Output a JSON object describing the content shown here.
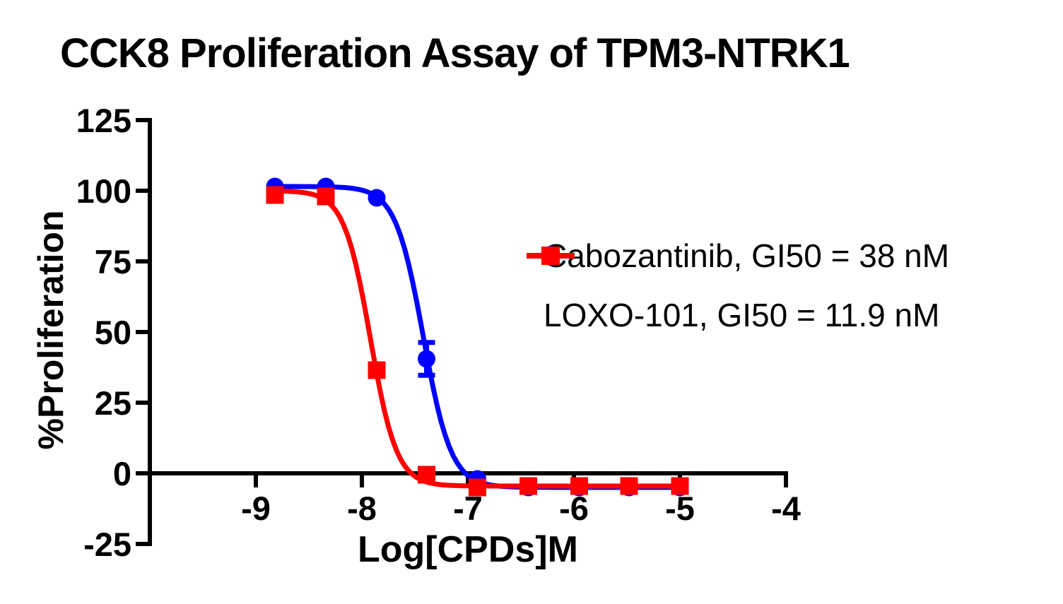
{
  "chart_data": {
    "type": "line",
    "title": "CCK8 Proliferation Assay of TPM3-NTRK1",
    "xlabel": "Log[CPDs]M",
    "ylabel": "%Proliferation",
    "xlim": [
      -10,
      -4
    ],
    "ylim": [
      -25,
      125
    ],
    "x_ticks": [
      -9,
      -8,
      -7,
      -6,
      -5,
      -4
    ],
    "y_ticks": [
      125,
      100,
      75,
      50,
      25,
      0,
      -25
    ],
    "grid": false,
    "legend_position": "right-center",
    "axis_color": "#000000",
    "series": [
      {
        "name": "Cabozantinib",
        "legend_label": "Cabozantinib, GI50 = 38 nM",
        "gi50": "38 nM",
        "color": "#0000ff",
        "marker": "circle",
        "x": [
          -8.82,
          -8.34,
          -7.86,
          -7.39,
          -6.91,
          -6.43,
          -5.95,
          -5.48,
          -5.0
        ],
        "y": [
          101.5,
          101.5,
          97.5,
          40.5,
          -2,
          -5,
          -5,
          -5,
          -5
        ],
        "y_err": [
          0,
          0,
          0,
          5.8,
          0,
          0,
          0,
          0,
          0
        ],
        "fit": {
          "top": 101.5,
          "bottom": -5,
          "log_ic50": -7.42,
          "hill_slope": 3.3
        }
      },
      {
        "name": "LOXO-101",
        "legend_label": "LOXO-101, GI50 = 11.9 nM",
        "gi50": "11.9 nM",
        "color": "#ff0000",
        "marker": "square",
        "x": [
          -8.82,
          -8.34,
          -7.86,
          -7.39,
          -6.91,
          -6.43,
          -5.95,
          -5.48,
          -5.0
        ],
        "y": [
          98.5,
          98,
          36.5,
          -0.5,
          -5,
          -4.5,
          -4.5,
          -4.5,
          -4.5
        ],
        "y_err": [
          0,
          0,
          0,
          0,
          0,
          0,
          0,
          0,
          0
        ],
        "fit": {
          "top": 100,
          "bottom": -4.5,
          "log_ic50": -7.92,
          "hill_slope": 3.5
        }
      }
    ]
  }
}
